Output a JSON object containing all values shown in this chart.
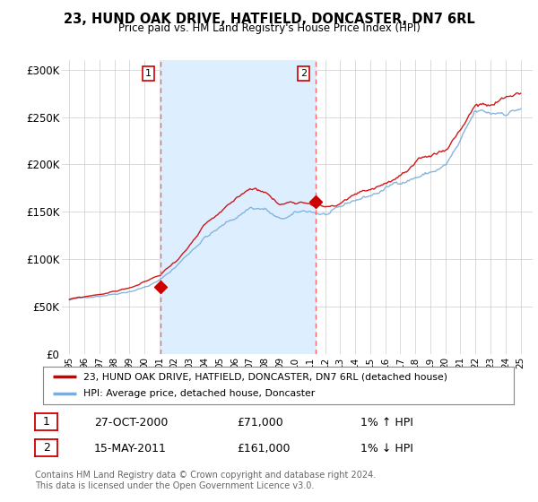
{
  "title": "23, HUND OAK DRIVE, HATFIELD, DONCASTER, DN7 6RL",
  "subtitle": "Price paid vs. HM Land Registry's House Price Index (HPI)",
  "background_color": "#ffffff",
  "plot_bg_color": "#ffffff",
  "highlight_color": "#ddeeff",
  "grid_color": "#cccccc",
  "sale1_date_num": 2001.05,
  "sale1_price": 71000,
  "sale1_label": "1",
  "sale2_date_num": 2011.37,
  "sale2_price": 161000,
  "sale2_label": "2",
  "sale1_info": "27-OCT-2000",
  "sale1_price_str": "£71,000",
  "sale1_hpi": "1% ↑ HPI",
  "sale2_info": "15-MAY-2011",
  "sale2_price_str": "£161,000",
  "sale2_hpi": "1% ↓ HPI",
  "legend_line1": "23, HUND OAK DRIVE, HATFIELD, DONCASTER, DN7 6RL (detached house)",
  "legend_line2": "HPI: Average price, detached house, Doncaster",
  "footer": "Contains HM Land Registry data © Crown copyright and database right 2024.\nThis data is licensed under the Open Government Licence v3.0.",
  "price_line_color": "#cc0000",
  "hpi_line_color": "#7aaddb",
  "vline_color": "#ff6666",
  "sale_marker_color": "#cc0000",
  "ylim": [
    0,
    310000
  ],
  "yticks": [
    0,
    50000,
    100000,
    150000,
    200000,
    250000,
    300000
  ],
  "ytick_labels": [
    "£0",
    "£50K",
    "£100K",
    "£150K",
    "£200K",
    "£250K",
    "£300K"
  ],
  "xmin": 1994.5,
  "xmax": 2025.8
}
